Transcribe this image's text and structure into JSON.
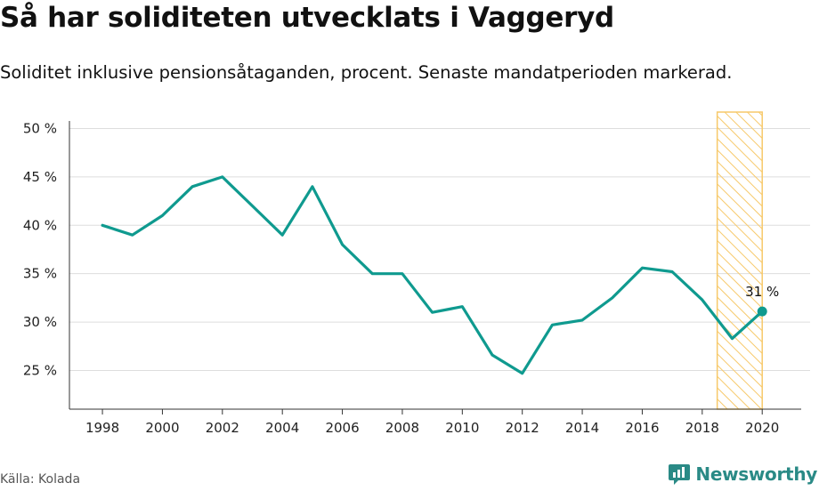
{
  "title": "Så har soliditeten utvecklats i Vaggeryd",
  "subtitle": "Soliditet inklusive pensionsåtaganden, procent. Senaste mandatperioden markerad.",
  "source": "Källa: Kolada",
  "logo": {
    "text": "Newsworthy",
    "icon": "newsworthy-chart-icon"
  },
  "colors": {
    "line": "#0f9a8f",
    "highlight_border": "#f7c96a",
    "grid": "#dddddd",
    "axis": "#333333"
  },
  "chart_data": {
    "type": "line",
    "x": [
      1998,
      1999,
      2000,
      2001,
      2002,
      2003,
      2004,
      2005,
      2006,
      2007,
      2008,
      2009,
      2010,
      2011,
      2012,
      2013,
      2014,
      2015,
      2016,
      2017,
      2018,
      2019,
      2020
    ],
    "series": [
      {
        "values": [
          40,
          39,
          41,
          44,
          45,
          42,
          39,
          44,
          38,
          35,
          35,
          31,
          31.6,
          26.6,
          24.7,
          29.7,
          30.2,
          32.5,
          35.6,
          35.2,
          32.3,
          28.3,
          31.1
        ]
      }
    ],
    "ylim": [
      21,
      51.7
    ],
    "xlim": [
      1996.9,
      2021.3
    ],
    "yticks": [
      25,
      30,
      35,
      40,
      45,
      50
    ],
    "ytick_labels": [
      "25 %",
      "30 %",
      "35 %",
      "40 %",
      "45 %",
      "50 %"
    ],
    "xticks": [
      1998,
      2000,
      2002,
      2004,
      2006,
      2008,
      2010,
      2012,
      2014,
      2016,
      2018,
      2020
    ],
    "xtick_labels": [
      "1998",
      "2000",
      "2002",
      "2004",
      "2006",
      "2008",
      "2010",
      "2012",
      "2014",
      "2016",
      "2018",
      "2020"
    ],
    "highlight_range": [
      2018.5,
      2020
    ],
    "annotation": {
      "x": 2020,
      "label": "31 %"
    },
    "grid": true
  }
}
